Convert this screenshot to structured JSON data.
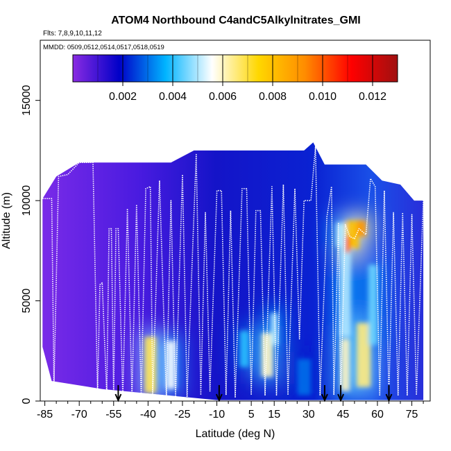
{
  "chart_data": {
    "type": "heatmap",
    "title": "ATOM4 Northbound C4andC5Alkylnitrates_GMI",
    "flights_label": "Flts: 7,8,9,10,11,12",
    "dates_label": "MMDD: 0509,0512,0514,0517,0518,0519",
    "xlabel": "Latitude (deg N)",
    "ylabel": "Altitude (m)",
    "xlim": [
      -87,
      83
    ],
    "ylim": [
      0,
      18000
    ],
    "x_ticks": [
      -85,
      -70,
      -55,
      -40,
      -25,
      -10,
      5,
      15,
      30,
      45,
      60,
      75
    ],
    "y_ticks": [
      0,
      5000,
      10000,
      15000
    ],
    "colorbar": {
      "min": 0,
      "max": 0.013,
      "ticks": [
        0.002,
        0.004,
        0.006,
        0.008,
        0.01,
        0.012
      ],
      "tick_labels": [
        "0.002",
        "0.004",
        "0.006",
        "0.008",
        "0.010",
        "0.012"
      ],
      "colors": [
        "#8a2be2",
        "#0000c8",
        "#00b4ff",
        "#ffffff",
        "#ffd700",
        "#ff8c00",
        "#ff0000",
        "#a01010"
      ]
    },
    "curtain_top": [
      [
        -86,
        10100
      ],
      [
        -80,
        11200
      ],
      [
        -70,
        11900
      ],
      [
        -55,
        11900
      ],
      [
        -40,
        11900
      ],
      [
        -30,
        11900
      ],
      [
        -20,
        12500
      ],
      [
        -5,
        12500
      ],
      [
        10,
        12500
      ],
      [
        20,
        12500
      ],
      [
        28,
        12500
      ],
      [
        32,
        12900
      ],
      [
        37,
        11800
      ],
      [
        45,
        11800
      ],
      [
        55,
        11800
      ],
      [
        62,
        11000
      ],
      [
        70,
        10800
      ],
      [
        76,
        10000
      ],
      [
        80,
        10000
      ]
    ],
    "curtain_bottom": [
      [
        -86,
        2700
      ],
      [
        -82,
        1000
      ],
      [
        -60,
        600
      ],
      [
        -10,
        50
      ],
      [
        40,
        50
      ],
      [
        80,
        50
      ]
    ],
    "hotspots": [
      {
        "lat": -39,
        "alt": 1800,
        "dlat": 2.5,
        "dalt": 1400,
        "value": 0.0068
      },
      {
        "lat": -30,
        "alt": 1800,
        "dlat": 2.0,
        "dalt": 1200,
        "value": 0.0055
      },
      {
        "lat": 12,
        "alt": 2300,
        "dlat": 2.5,
        "dalt": 1100,
        "value": 0.006
      },
      {
        "lat": 15,
        "alt": 3600,
        "dlat": 1.5,
        "dalt": 800,
        "value": 0.005
      },
      {
        "lat": 2,
        "alt": 2600,
        "dlat": 2.0,
        "dalt": 900,
        "value": 0.004
      },
      {
        "lat": 28,
        "alt": 1200,
        "dlat": 3.0,
        "dalt": 900,
        "value": 0.003
      },
      {
        "lat": 46,
        "alt": 6000,
        "dlat": 2.5,
        "dalt": 2800,
        "value": 0.005
      },
      {
        "lat": 46,
        "alt": 1800,
        "dlat": 2.0,
        "dalt": 1300,
        "value": 0.006
      },
      {
        "lat": 54,
        "alt": 2300,
        "dlat": 3.0,
        "dalt": 1600,
        "value": 0.0065
      },
      {
        "lat": 58,
        "alt": 4800,
        "dlat": 2.0,
        "dalt": 2000,
        "value": 0.0045
      },
      {
        "lat": 49,
        "alt": 8300,
        "dlat": 3.0,
        "dalt": 700,
        "value": 0.008
      },
      {
        "lat": 53,
        "alt": 8600,
        "dlat": 2.0,
        "dalt": 400,
        "value": 0.009
      },
      {
        "lat": 47,
        "alt": 7800,
        "dlat": 1.0,
        "dalt": 400,
        "value": 0.01
      },
      {
        "lat": 44,
        "alt": 8300,
        "dlat": 2.0,
        "dalt": 600,
        "value": 0.005
      }
    ],
    "flight_track": [
      [
        -86,
        10100
      ],
      [
        -82,
        10100
      ],
      [
        -81,
        800
      ],
      [
        -79,
        11200
      ],
      [
        -75,
        11300
      ],
      [
        -70,
        11900
      ],
      [
        -64,
        11900
      ],
      [
        -62,
        400
      ],
      [
        -61,
        5800
      ],
      [
        -60,
        5900
      ],
      [
        -58,
        300
      ],
      [
        -57,
        8600
      ],
      [
        -56,
        8600
      ],
      [
        -55,
        300
      ],
      [
        -54,
        8600
      ],
      [
        -53,
        8600
      ],
      [
        -51,
        200
      ],
      [
        -49,
        9600
      ],
      [
        -47,
        200
      ],
      [
        -45,
        9800
      ],
      [
        -43,
        200
      ],
      [
        -41,
        10600
      ],
      [
        -39,
        10700
      ],
      [
        -38,
        200
      ],
      [
        -35,
        11000
      ],
      [
        -32,
        200
      ],
      [
        -30,
        10000
      ],
      [
        -28,
        200
      ],
      [
        -25,
        11300
      ],
      [
        -23,
        200
      ],
      [
        -19,
        12300
      ],
      [
        -17,
        300
      ],
      [
        -15,
        9400
      ],
      [
        -13,
        500
      ],
      [
        -10,
        10500
      ],
      [
        -8,
        10500
      ],
      [
        -6,
        300
      ],
      [
        -4,
        9500
      ],
      [
        -2,
        200
      ],
      [
        1,
        10600
      ],
      [
        3,
        10600
      ],
      [
        5,
        300
      ],
      [
        7,
        9500
      ],
      [
        9,
        9500
      ],
      [
        11,
        300
      ],
      [
        14,
        10700
      ],
      [
        16,
        300
      ],
      [
        19,
        10800
      ],
      [
        21,
        300
      ],
      [
        24,
        10600
      ],
      [
        26,
        3100
      ],
      [
        28,
        10000
      ],
      [
        31,
        10000
      ],
      [
        33,
        12700
      ],
      [
        35,
        300
      ],
      [
        38,
        9200
      ],
      [
        40,
        10700
      ],
      [
        41,
        300
      ],
      [
        43,
        8900
      ],
      [
        44,
        300
      ],
      [
        46,
        8800
      ],
      [
        48,
        8200
      ],
      [
        50,
        8100
      ],
      [
        52,
        8600
      ],
      [
        55,
        8300
      ],
      [
        57,
        11100
      ],
      [
        59,
        10700
      ],
      [
        61,
        300
      ],
      [
        63,
        10500
      ],
      [
        65,
        300
      ],
      [
        67,
        9400
      ],
      [
        69,
        300
      ],
      [
        71,
        9400
      ],
      [
        73,
        300
      ],
      [
        75,
        9300
      ],
      [
        77,
        300
      ],
      [
        80,
        10000
      ]
    ],
    "arrows_lat": [
      -53,
      -9,
      37,
      44,
      65
    ]
  }
}
